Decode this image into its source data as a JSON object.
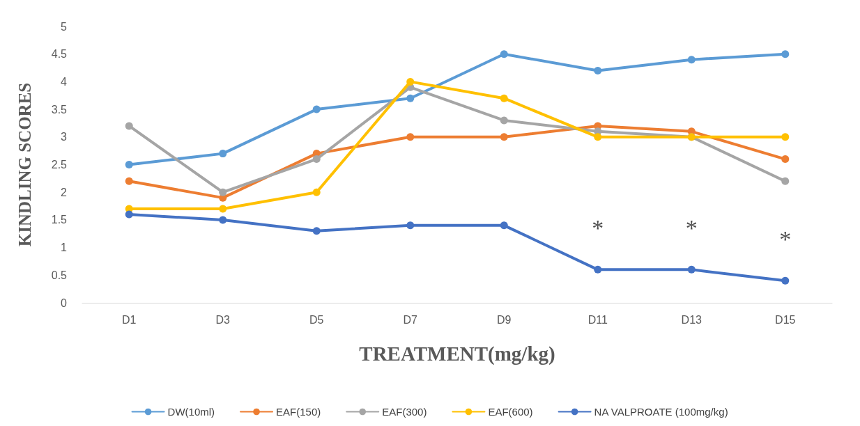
{
  "chart_data": {
    "type": "line",
    "xlabel": "TREATMENT(mg/kg)",
    "ylabel": "KINDLING SCORES",
    "categories": [
      "D1",
      "D3",
      "D5",
      "D7",
      "D9",
      "D11",
      "D13",
      "D15"
    ],
    "series": [
      {
        "name": "DW(10ml)",
        "color": "#5b9bd5",
        "values": [
          2.5,
          2.7,
          3.5,
          3.7,
          4.5,
          4.2,
          4.4,
          4.5
        ]
      },
      {
        "name": "EAF(150)",
        "color": "#ed7d31",
        "values": [
          2.2,
          1.9,
          2.7,
          3.0,
          3.0,
          3.2,
          3.1,
          2.6
        ]
      },
      {
        "name": "EAF(300)",
        "color": "#a5a5a5",
        "values": [
          3.2,
          2.0,
          2.6,
          3.9,
          3.3,
          3.1,
          3.0,
          2.2
        ]
      },
      {
        "name": "EAF(600)",
        "color": "#ffc000",
        "values": [
          1.7,
          1.7,
          2.0,
          4.0,
          3.7,
          3.0,
          3.0,
          3.0
        ]
      },
      {
        "name": "NA VALPROATE (100mg/kg)",
        "color": "#4472c4",
        "values": [
          1.6,
          1.5,
          1.3,
          1.4,
          1.4,
          0.6,
          0.6,
          0.4
        ]
      }
    ],
    "annotations": [
      "*",
      "*",
      "*"
    ],
    "ylim": [
      0,
      5
    ],
    "yticks": [
      0,
      0.5,
      1,
      1.5,
      2,
      2.5,
      3,
      3.5,
      4,
      4.5,
      5
    ],
    "grid": false,
    "legend": "bottom",
    "marker": "circle",
    "line_style": "solid"
  }
}
